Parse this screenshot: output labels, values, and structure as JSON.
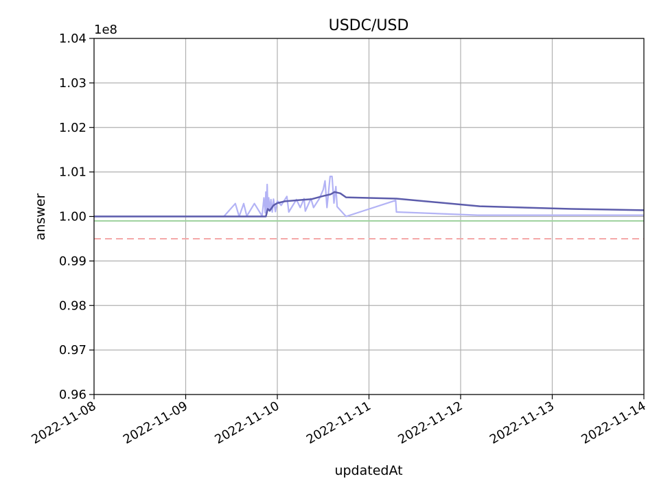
{
  "chart_data": {
    "type": "line",
    "title": "USDC/USD",
    "xlabel": "updatedAt",
    "ylabel": "answer",
    "y_offset_label": "1e8",
    "grid": true,
    "x_range": [
      "2022-11-08",
      "2022-11-14"
    ],
    "ylim": [
      0.96,
      1.04
    ],
    "x_ticks": [
      "2022-11-08",
      "2022-11-09",
      "2022-11-10",
      "2022-11-11",
      "2022-11-12",
      "2022-11-13",
      "2022-11-14"
    ],
    "y_ticks": [
      "0.96",
      "0.97",
      "0.98",
      "0.99",
      "1.00",
      "1.01",
      "1.02",
      "1.03",
      "1.04"
    ],
    "reference_lines": [
      {
        "y": 0.999,
        "color": "#9fd39f",
        "style": "solid"
      },
      {
        "y": 0.995,
        "color": "#f4a8a8",
        "style": "dashed"
      }
    ],
    "series": [
      {
        "color": "#b3b3f5",
        "points": [
          [
            "2022-11-08T00:00",
            1.0
          ],
          [
            "2022-11-09T10:00",
            1.0
          ],
          [
            "2022-11-09T13:00",
            1.0029
          ],
          [
            "2022-11-09T14:00",
            1.0
          ],
          [
            "2022-11-09T15:12",
            1.0029
          ],
          [
            "2022-11-09T16:00",
            1.0001
          ],
          [
            "2022-11-09T18:00",
            1.0029
          ],
          [
            "2022-11-09T20:00",
            1.0001
          ],
          [
            "2022-11-09T20:30",
            1.0042
          ],
          [
            "2022-11-09T20:50",
            1.0008
          ],
          [
            "2022-11-09T21:00",
            1.0055
          ],
          [
            "2022-11-09T21:10",
            1.001
          ],
          [
            "2022-11-09T21:20",
            1.0072
          ],
          [
            "2022-11-09T21:30",
            1.0018
          ],
          [
            "2022-11-09T21:45",
            1.0042
          ],
          [
            "2022-11-09T22:00",
            1.0012
          ],
          [
            "2022-11-09T22:20",
            1.0038
          ],
          [
            "2022-11-09T22:40",
            1.001
          ],
          [
            "2022-11-09T23:00",
            1.0039
          ],
          [
            "2022-11-09T23:30",
            1.0011
          ],
          [
            "2022-11-10T00:00",
            1.0035
          ],
          [
            "2022-11-10T01:00",
            1.0025
          ],
          [
            "2022-11-10T02:30",
            1.0045
          ],
          [
            "2022-11-10T03:00",
            1.001
          ],
          [
            "2022-11-10T05:00",
            1.0038
          ],
          [
            "2022-11-10T06:00",
            1.002
          ],
          [
            "2022-11-10T07:00",
            1.004
          ],
          [
            "2022-11-10T07:20",
            1.0012
          ],
          [
            "2022-11-10T08:48",
            1.004
          ],
          [
            "2022-11-10T09:30",
            1.002
          ],
          [
            "2022-11-10T11:00",
            1.004
          ],
          [
            "2022-11-10T12:00",
            1.006
          ],
          [
            "2022-11-10T12:30",
            1.008
          ],
          [
            "2022-11-10T13:00",
            1.002
          ],
          [
            "2022-11-10T13:50",
            1.009
          ],
          [
            "2022-11-10T14:20",
            1.009
          ],
          [
            "2022-11-10T14:50",
            1.003
          ],
          [
            "2022-11-10T15:20",
            1.0067
          ],
          [
            "2022-11-10T15:40",
            1.0022
          ],
          [
            "2022-11-10T18:00",
            1.0
          ],
          [
            "2022-11-11T07:00",
            1.0036
          ],
          [
            "2022-11-11T07:12",
            1.001
          ],
          [
            "2022-11-12T04:30",
            1.0003
          ],
          [
            "2022-11-14T00:00",
            1.0003
          ]
        ]
      },
      {
        "color": "#5c5cab",
        "points": [
          [
            "2022-11-08T00:00",
            1.0
          ],
          [
            "2022-11-09T21:00",
            1.0
          ],
          [
            "2022-11-09T21:30",
            1.0017
          ],
          [
            "2022-11-09T22:00",
            1.0013
          ],
          [
            "2022-11-09T23:00",
            1.0025
          ],
          [
            "2022-11-10T00:00",
            1.003
          ],
          [
            "2022-11-10T02:00",
            1.0034
          ],
          [
            "2022-11-10T06:00",
            1.0037
          ],
          [
            "2022-11-10T09:00",
            1.0039
          ],
          [
            "2022-11-10T12:00",
            1.0046
          ],
          [
            "2022-11-10T14:00",
            1.005
          ],
          [
            "2022-11-10T15:00",
            1.0055
          ],
          [
            "2022-11-10T16:30",
            1.0052
          ],
          [
            "2022-11-10T18:00",
            1.0043
          ],
          [
            "2022-11-11T07:12",
            1.004
          ],
          [
            "2022-11-12T05:00",
            1.0023
          ],
          [
            "2022-11-13T05:00",
            1.0017
          ],
          [
            "2022-11-14T00:00",
            1.0014
          ]
        ]
      }
    ]
  }
}
